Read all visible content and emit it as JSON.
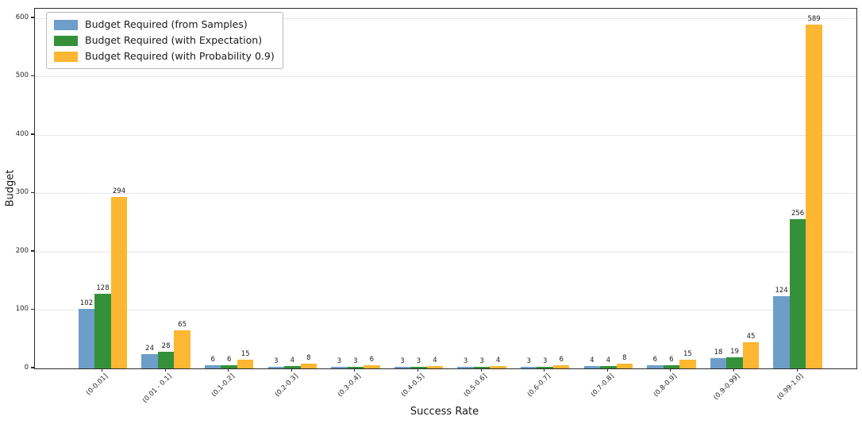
{
  "chart_data": {
    "type": "bar",
    "title": "",
    "xlabel": "Success Rate",
    "ylabel": "Budget",
    "ylim": [
      0,
      600
    ],
    "yticks": [
      0,
      100,
      200,
      300,
      400,
      500,
      600
    ],
    "grid": "horizontal",
    "bar_labels": true,
    "legend_position": "upper left",
    "categories": [
      "(0-0.01]",
      "(0.01 - 0.1]",
      "(0.1-0.2]",
      "(0.2-0.3]",
      "(0.3-0.4]",
      "(0.4-0.5]",
      "(0.5-0.6]",
      "(0.6-0.7]",
      "(0.7-0.8]",
      "(0.8-0.9]",
      "(0.9-0.99]",
      "(0.99-1.0]"
    ],
    "series": [
      {
        "name": "Budget Required (from Samples)",
        "color": "#6D9EC9",
        "values": [
          102,
          24,
          6,
          3,
          3,
          3,
          3,
          3,
          4,
          6,
          18,
          124
        ]
      },
      {
        "name": "Budget Required (with Expectation)",
        "color": "#349139",
        "values": [
          128,
          28,
          6,
          4,
          3,
          3,
          3,
          3,
          4,
          6,
          19,
          256
        ]
      },
      {
        "name": "Budget Required (with Probability 0.9)",
        "color": "#FDB732",
        "values": [
          294,
          65,
          15,
          8,
          6,
          4,
          4,
          6,
          8,
          15,
          45,
          589
        ]
      }
    ],
    "colors": {
      "spine": "#2b2b2b",
      "grid": "#e7e7e7",
      "text": "#262626",
      "background": "#ffffff"
    }
  }
}
